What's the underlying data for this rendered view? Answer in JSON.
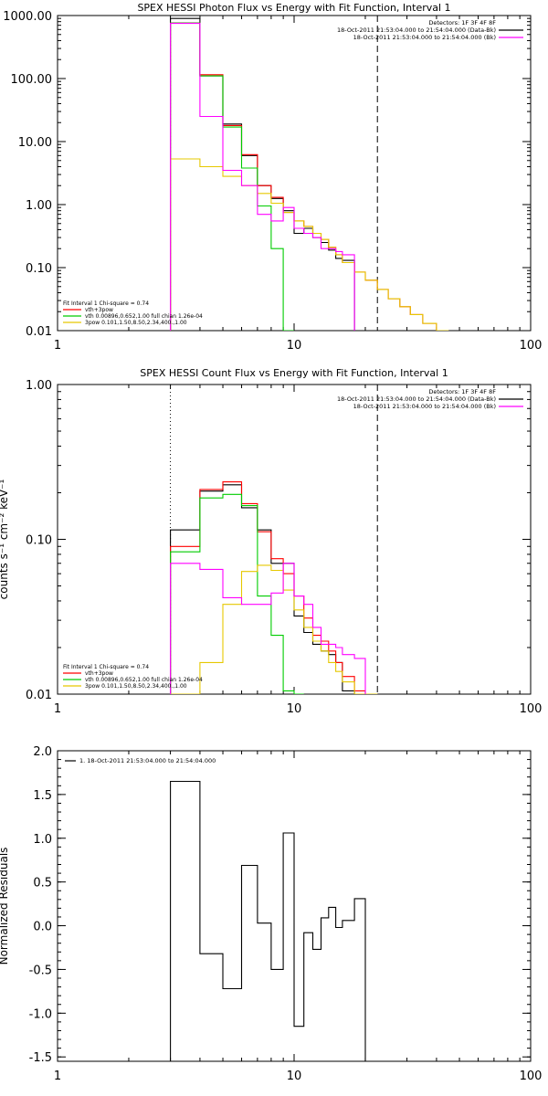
{
  "chart_data": [
    {
      "type": "line",
      "id": "photon",
      "title": "SPEX HESSI Photon Flux vs Energy with Fit Function, Interval 1",
      "xlabel": "",
      "ylabel": "",
      "xscale": "log",
      "yscale": "log",
      "xlim": [
        1,
        100
      ],
      "ylim": [
        0.01,
        1000
      ],
      "xticks": [
        1,
        10,
        100
      ],
      "xtick_labels": [
        "1",
        "10",
        "100"
      ],
      "yticks": [
        0.01,
        0.1,
        1,
        10,
        100,
        1000
      ],
      "ytick_labels": [
        "0.01",
        "0.10",
        "1.00",
        "10.00",
        "100.00",
        "1000.00"
      ],
      "legend_top": [
        "Detectors: 1F 3F 4F 8F",
        "18-Oct-2011 21:53:04.000 to 21:54:04.000 (Data-Bk)",
        "18-Oct-2011 21:53:04.000 to 21:54:04.000 (Bk)"
      ],
      "legend_top_colors": [
        "none",
        "#000000",
        "#ff00ff"
      ],
      "legend_bottom": [
        "Fit Interval 1   Chi-square = 0.74",
        "vth+3pow",
        "vth 0.00896,0.652,1.00  full chian 1.26e-04",
        "3pow 0.101,1.50,8.50,2.34,400.,1.00"
      ],
      "legend_bottom_colors": [
        "none",
        "#ff0000",
        "#00cc00",
        "#e6c800"
      ],
      "vlines": [
        {
          "x": 3.0,
          "style": "dotted",
          "color": "#000000"
        },
        {
          "x": 22.5,
          "style": "dashed",
          "color": "#000000"
        }
      ],
      "edges": [
        3.0,
        4.0,
        5.0,
        6.0,
        7.0,
        8.0,
        9.0,
        10.0,
        11.0,
        12.0,
        13.0,
        14.0,
        15.0,
        16.0,
        18.0,
        20.0,
        22.5,
        25.0,
        28.0,
        31.0,
        35.0,
        40.0,
        45.0
      ],
      "series": [
        {
          "name": "Data-Bk",
          "color": "#000000",
          "values": [
            900,
            110,
            19,
            6,
            2.0,
            1.25,
            0.8,
            0.35,
            0.42,
            0.3,
            0.25,
            0.19,
            0.14,
            0.13
          ]
        },
        {
          "name": "vth+3pow",
          "color": "#ff0000",
          "values": [
            760,
            115,
            18,
            6.2,
            2.0,
            1.3,
            0.75,
            0.55,
            0.45,
            0.35,
            0.28,
            0.21,
            0.16,
            0.12,
            0.085,
            0.063,
            0.045,
            0.032,
            0.024,
            0.018,
            0.013,
            0.0095
          ]
        },
        {
          "name": "vth",
          "color": "#00cc00",
          "values": [
            760,
            110,
            17,
            3.8,
            0.95,
            0.2,
            0.005
          ]
        },
        {
          "name": "3pow",
          "color": "#e6c800",
          "values": [
            5.3,
            4.0,
            2.8,
            2.0,
            1.5,
            1.05,
            0.75,
            0.55,
            0.45,
            0.35,
            0.28,
            0.21,
            0.16,
            0.12,
            0.085,
            0.063,
            0.045,
            0.032,
            0.024,
            0.018,
            0.013,
            0.0095
          ]
        },
        {
          "name": "Bk",
          "color": "#ff00ff",
          "values": [
            750,
            25,
            3.5,
            2.0,
            0.7,
            0.55,
            0.9,
            0.42,
            0.35,
            0.3,
            0.2,
            0.2,
            0.18,
            0.16
          ]
        }
      ]
    },
    {
      "type": "line",
      "id": "count",
      "title": "SPEX HESSI Count Flux vs Energy with Fit Function, Interval 1",
      "xlabel": "",
      "ylabel": "counts s⁻¹ cm⁻² keV⁻¹",
      "xscale": "log",
      "yscale": "log",
      "xlim": [
        1,
        100
      ],
      "ylim": [
        0.01,
        1.0
      ],
      "xticks": [
        1,
        10,
        100
      ],
      "xtick_labels": [
        "1",
        "10",
        "100"
      ],
      "yticks": [
        0.01,
        0.1,
        1.0
      ],
      "ytick_labels": [
        "0.01",
        "0.10",
        "1.00"
      ],
      "legend_top": [
        "Detectors: 1F 3F 4F 8F",
        "18-Oct-2011 21:53:04.000 to 21:54:04.000 (Data-Bk)",
        "18-Oct-2011 21:53:04.000 to 21:54:04.000 (Bk)"
      ],
      "legend_top_colors": [
        "none",
        "#000000",
        "#ff00ff"
      ],
      "legend_bottom": [
        "Fit Interval 1   Chi-square = 0.74",
        "vth+3pow",
        "vth 0.00896,0.652,1.00  full chian 1.26e-04",
        "3pow 0.101,1.50,8.50,2.34,400.,1.00"
      ],
      "legend_bottom_colors": [
        "none",
        "#ff0000",
        "#00cc00",
        "#e6c800"
      ],
      "vlines": [
        {
          "x": 3.0,
          "style": "dotted",
          "color": "#000000"
        },
        {
          "x": 22.5,
          "style": "dashed",
          "color": "#000000"
        }
      ],
      "edges": [
        3.0,
        4.0,
        5.0,
        6.0,
        7.0,
        8.0,
        9.0,
        10.0,
        11.0,
        12.0,
        13.0,
        14.0,
        15.0,
        16.0,
        18.0,
        20.0,
        22.5
      ],
      "series": [
        {
          "name": "Data-Bk",
          "color": "#000000",
          "values": [
            0.115,
            0.205,
            0.225,
            0.16,
            0.115,
            0.07,
            0.07,
            0.032,
            0.025,
            0.021,
            0.019,
            0.018,
            0.016,
            0.0105,
            0.0095
          ]
        },
        {
          "name": "vth+3pow",
          "color": "#ff0000",
          "values": [
            0.09,
            0.21,
            0.235,
            0.17,
            0.112,
            0.075,
            0.06,
            0.043,
            0.031,
            0.024,
            0.022,
            0.019,
            0.016,
            0.013,
            0.0105,
            0.0085
          ]
        },
        {
          "name": "vth",
          "color": "#00cc00",
          "values": [
            0.083,
            0.185,
            0.195,
            0.165,
            0.043,
            0.024,
            0.0105,
            0.009
          ]
        },
        {
          "name": "3pow",
          "color": "#e6c800",
          "values": [
            0.009,
            0.016,
            0.038,
            0.062,
            0.068,
            0.063,
            0.047,
            0.035,
            0.027,
            0.022,
            0.019,
            0.016,
            0.014,
            0.012,
            0.0095,
            0.008
          ]
        },
        {
          "name": "Bk",
          "color": "#ff00ff",
          "values": [
            0.07,
            0.064,
            0.042,
            0.038,
            0.038,
            0.045,
            0.07,
            0.043,
            0.038,
            0.027,
            0.021,
            0.021,
            0.02,
            0.018,
            0.017
          ]
        }
      ]
    },
    {
      "type": "line",
      "id": "residuals",
      "title": "",
      "xlabel": "",
      "ylabel": "Normalized Residuals",
      "xscale": "log",
      "yscale": "linear",
      "xlim": [
        1,
        100
      ],
      "ylim": [
        -1.55,
        2.0
      ],
      "xticks": [
        1,
        10,
        100
      ],
      "xtick_labels": [
        "1",
        "10",
        "100"
      ],
      "yticks": [
        -1.5,
        -1.0,
        -0.5,
        0.0,
        0.5,
        1.0,
        1.5,
        2.0
      ],
      "ytick_labels": [
        "-1.5",
        "-1.0",
        "-0.5",
        "0.0",
        "0.5",
        "1.0",
        "1.5",
        "2.0"
      ],
      "legend_top_left": "1. 18-Oct-2011 21:53:04.000 to 21:54:04.000",
      "edges": [
        3.0,
        4.0,
        5.0,
        6.0,
        7.0,
        8.0,
        9.0,
        10.0,
        11.0,
        12.0,
        13.0,
        14.0,
        15.0,
        16.0,
        18.0,
        20.0,
        22.5
      ],
      "series": [
        {
          "name": "1. 18-Oct-2011 21:53:04.000 to 21:54:04.000",
          "color": "#000000",
          "values": [
            1.65,
            -0.32,
            -0.72,
            0.69,
            0.03,
            -0.5,
            1.06,
            -1.15,
            -0.08,
            -0.27,
            0.09,
            0.21,
            -0.02,
            0.06,
            0.31
          ]
        }
      ]
    }
  ]
}
